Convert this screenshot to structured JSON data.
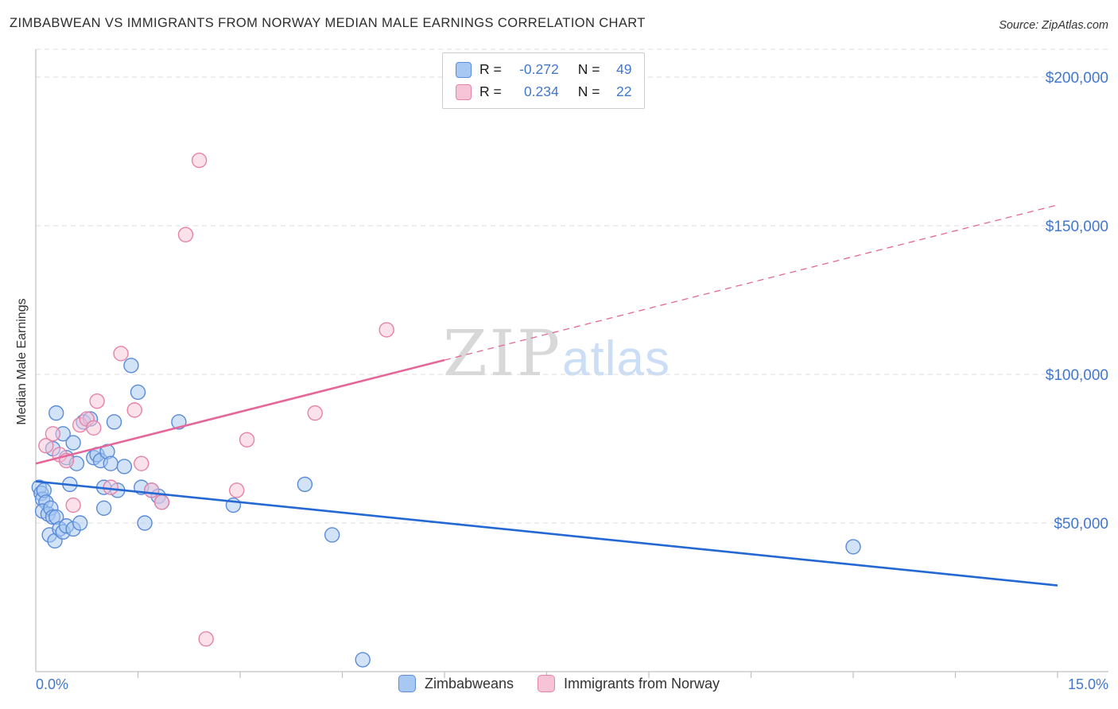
{
  "header": {
    "title": "ZIMBABWEAN VS IMMIGRANTS FROM NORWAY MEDIAN MALE EARNINGS CORRELATION CHART",
    "source": "Source: ZipAtlas.com"
  },
  "colors": {
    "accent": "#4277CE",
    "grid": "#DCDCDC",
    "axis": "#C2C2C2",
    "title_text": "#2D2D2D",
    "watermark_zip": "#D8D8D8",
    "watermark_atlas": "#CBDEF5"
  },
  "watermark": {
    "zip": "ZIP",
    "atlas": "atlas"
  },
  "legend": {
    "r_label": "R =",
    "n_label": "N ="
  },
  "axis": {
    "x_min_label": "0.0%",
    "x_max_label": "15.0%"
  },
  "bottom_legend": [
    {
      "label": "Zimbabweans"
    },
    {
      "label": "Immigrants from Norway"
    }
  ],
  "chart_data": {
    "type": "scatter",
    "title": "Zimbabwean vs Immigrants from Norway Median Male Earnings",
    "xlabel": "",
    "ylabel": "Median Male Earnings",
    "xlim": [
      0,
      15
    ],
    "ylim": [
      0,
      210000
    ],
    "x_tick_step_pct": 1.5,
    "grid": "dashed-horizontal",
    "legend_position": "bottom-center",
    "y_ticks": [
      {
        "value": 200000,
        "label": "$200,000"
      },
      {
        "value": 150000,
        "label": "$150,000"
      },
      {
        "value": 100000,
        "label": "$100,000"
      },
      {
        "value": 50000,
        "label": "$50,000"
      }
    ],
    "series": [
      {
        "name": "Zimbabweans",
        "R": "-0.272",
        "N": "49",
        "fill": "#A6C8F2",
        "stroke": "#5A8BD8",
        "trend_color": "#2468D4",
        "points": [
          [
            0.05,
            62000
          ],
          [
            0.08,
            60000
          ],
          [
            0.1,
            58000
          ],
          [
            0.12,
            61000
          ],
          [
            0.15,
            57000
          ],
          [
            0.1,
            54000
          ],
          [
            0.18,
            53000
          ],
          [
            0.22,
            55000
          ],
          [
            0.25,
            52000
          ],
          [
            0.3,
            52000
          ],
          [
            0.2,
            46000
          ],
          [
            0.28,
            44000
          ],
          [
            0.35,
            48000
          ],
          [
            0.4,
            47000
          ],
          [
            0.45,
            49000
          ],
          [
            0.55,
            48000
          ],
          [
            0.3,
            87000
          ],
          [
            0.4,
            80000
          ],
          [
            0.45,
            72000
          ],
          [
            0.5,
            63000
          ],
          [
            0.6,
            70000
          ],
          [
            0.55,
            77000
          ],
          [
            0.65,
            50000
          ],
          [
            0.7,
            84000
          ],
          [
            0.8,
            85000
          ],
          [
            0.85,
            72000
          ],
          [
            0.9,
            73000
          ],
          [
            0.95,
            71000
          ],
          [
            1.0,
            62000
          ],
          [
            1.0,
            55000
          ],
          [
            1.05,
            74000
          ],
          [
            1.1,
            70000
          ],
          [
            1.15,
            84000
          ],
          [
            1.2,
            61000
          ],
          [
            1.3,
            69000
          ],
          [
            1.4,
            103000
          ],
          [
            1.5,
            94000
          ],
          [
            1.55,
            62000
          ],
          [
            1.6,
            50000
          ],
          [
            1.7,
            61000
          ],
          [
            1.8,
            59000
          ],
          [
            1.85,
            57000
          ],
          [
            2.1,
            84000
          ],
          [
            2.9,
            56000
          ],
          [
            3.95,
            63000
          ],
          [
            4.35,
            46000
          ],
          [
            4.8,
            4000
          ],
          [
            12.0,
            42000
          ],
          [
            0.25,
            75000
          ]
        ]
      },
      {
        "name": "Immigrants from Norway",
        "R": "0.234",
        "N": "22",
        "fill": "#F7C3D6",
        "stroke": "#E583A8",
        "trend_color": "#E5679A",
        "points": [
          [
            0.15,
            76000
          ],
          [
            0.25,
            80000
          ],
          [
            0.35,
            73000
          ],
          [
            0.45,
            71000
          ],
          [
            0.55,
            56000
          ],
          [
            0.65,
            83000
          ],
          [
            0.75,
            85000
          ],
          [
            0.85,
            82000
          ],
          [
            0.9,
            91000
          ],
          [
            1.1,
            62000
          ],
          [
            1.25,
            107000
          ],
          [
            1.45,
            88000
          ],
          [
            1.55,
            70000
          ],
          [
            1.7,
            61000
          ],
          [
            1.85,
            57000
          ],
          [
            2.2,
            147000
          ],
          [
            2.4,
            172000
          ],
          [
            2.5,
            11000
          ],
          [
            2.95,
            61000
          ],
          [
            3.1,
            78000
          ],
          [
            4.1,
            87000
          ],
          [
            5.15,
            115000
          ]
        ]
      }
    ],
    "trend_lines": [
      {
        "series": 0,
        "x0": 0,
        "y0": 64000,
        "x1": 15,
        "y1": 29000,
        "style": "solid"
      },
      {
        "series": 1,
        "x0": 0,
        "y0": 70000,
        "x1": 6,
        "y1": 104800,
        "style": "solid"
      },
      {
        "series": 1,
        "x0": 6,
        "y0": 104800,
        "x1": 15,
        "y1": 157000,
        "style": "dashed"
      }
    ]
  }
}
